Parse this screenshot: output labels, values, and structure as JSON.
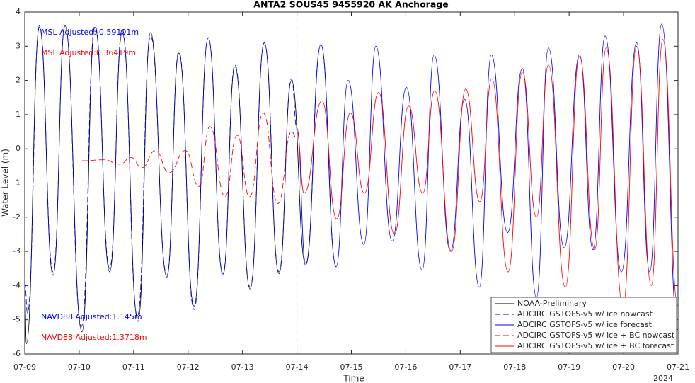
{
  "chart_data": {
    "type": "line",
    "title": "ANTA2 SOUS45 9455920 AK Anchorage",
    "x_label": "Time",
    "y_label": "Water Level (m)",
    "year_label": "2024",
    "xlim": [
      0,
      12
    ],
    "xticks": [
      {
        "value": 0,
        "label": "07-09"
      },
      {
        "value": 1,
        "label": "07-10"
      },
      {
        "value": 2,
        "label": "07-11"
      },
      {
        "value": 3,
        "label": "07-12"
      },
      {
        "value": 4,
        "label": "07-13"
      },
      {
        "value": 5,
        "label": "07-14"
      },
      {
        "value": 6,
        "label": "07-15"
      },
      {
        "value": 7,
        "label": "07-16"
      },
      {
        "value": 8,
        "label": "07-17"
      },
      {
        "value": 9,
        "label": "07-18"
      },
      {
        "value": 10,
        "label": "07-19"
      },
      {
        "value": 11,
        "label": "07-20"
      },
      {
        "value": 12,
        "label": "07-21"
      }
    ],
    "ylim": [
      -6,
      4
    ],
    "yticks": [
      -6,
      -5,
      -4,
      -3,
      -2,
      -1,
      0,
      1,
      2,
      3,
      4
    ],
    "grid": false,
    "vline_x": 5,
    "legend_position": "lower right",
    "annotations": [
      {
        "text": "MSL Adjusted:-0.59101m",
        "color": "#0000ff"
      },
      {
        "text": "MSL Adjusted:0.36419m",
        "color": "#ff0000"
      },
      {
        "text": "NAVD88 Adjusted:1.145m",
        "color": "#0000ff"
      },
      {
        "text": "NAVD88 Adjusted:1.3718m",
        "color": "#ff0000"
      }
    ],
    "series": [
      {
        "name": "NOAA-Preliminary",
        "color": "#000000",
        "dash": false,
        "x": [
          0,
          0.03,
          0.27,
          0.52,
          0.74,
          1.05,
          1.29,
          1.56,
          1.79,
          2.08,
          2.31,
          2.61,
          2.83,
          3.11,
          3.37,
          3.64,
          3.86,
          4.14,
          4.4,
          4.67,
          4.9,
          5.16,
          5.44,
          5.72
        ],
        "values": [
          -4.3,
          -5.7,
          3.55,
          -3.7,
          3.6,
          -5.35,
          3.55,
          -3.6,
          3.4,
          -5.05,
          3.4,
          -3.75,
          2.8,
          -4.6,
          3.25,
          -3.7,
          2.4,
          -4.1,
          3.1,
          -3.65,
          2.0,
          -3.4,
          3.05,
          -3.45
        ]
      },
      {
        "name": "ADCIRC GSTOFS-v5 w/ ice nowcast",
        "color": "#0000ff",
        "dash": true,
        "x": [
          0,
          0.05,
          0.27,
          0.52,
          0.74,
          1.04,
          1.29,
          1.56,
          1.79,
          2.07,
          2.31,
          2.61,
          2.83,
          3.11,
          3.37,
          3.64,
          3.86,
          4.14,
          4.4,
          4.67,
          4.9,
          5.0
        ],
        "values": [
          -3.9,
          -4.8,
          3.6,
          -3.6,
          3.6,
          -5.2,
          3.6,
          -3.5,
          3.5,
          -4.9,
          3.3,
          -3.7,
          2.85,
          -4.7,
          3.25,
          -3.65,
          2.45,
          -4.05,
          3.1,
          -3.6,
          2.05,
          0.6
        ]
      },
      {
        "name": "ADCIRC GSTOFS-v5 w/ ice forecast",
        "color": "#0000ff",
        "dash": false,
        "x": [
          5.0,
          5.16,
          5.44,
          5.72,
          5.94,
          6.23,
          6.45,
          6.75,
          7.01,
          7.3,
          7.52,
          7.82,
          8.08,
          8.35,
          8.57,
          8.87,
          9.14,
          9.4,
          9.62,
          9.91,
          10.19,
          10.44,
          10.66,
          10.96,
          11.24,
          11.48,
          11.7,
          12.0
        ],
        "values": [
          0.6,
          -3.35,
          3.05,
          -3.45,
          2.0,
          -2.8,
          3.0,
          -2.7,
          1.8,
          -3.55,
          2.75,
          -3.0,
          1.45,
          -4.05,
          2.75,
          -2.45,
          2.35,
          -4.35,
          2.95,
          -2.9,
          2.75,
          -2.95,
          3.3,
          -3.6,
          3.1,
          -3.6,
          3.65,
          -5.3
        ]
      },
      {
        "name": "ADCIRC GSTOFS-v5 w/ ice + BC nowcast",
        "color": "#ff0000",
        "dash": true,
        "x": [
          1.05,
          1.45,
          1.75,
          1.95,
          2.15,
          2.4,
          2.65,
          2.95,
          3.2,
          3.4,
          3.68,
          3.9,
          4.13,
          4.38,
          4.65,
          4.9,
          5.0
        ],
        "values": [
          -0.35,
          -0.32,
          -0.45,
          -0.25,
          -0.55,
          -0.05,
          -0.7,
          -0.05,
          -1.1,
          0.65,
          -1.4,
          0.4,
          -1.4,
          1.05,
          -1.6,
          0.5,
          0.3
        ]
      },
      {
        "name": "ADCIRC GSTOFS-v5 w/ ice + BC forecast",
        "color": "#ff0000",
        "dash": false,
        "x": [
          5.0,
          5.13,
          5.46,
          5.73,
          5.98,
          6.24,
          6.5,
          6.79,
          7.05,
          7.31,
          7.53,
          7.84,
          8.1,
          8.36,
          8.58,
          8.88,
          9.14,
          9.4,
          9.62,
          9.93,
          10.19,
          10.47,
          10.68,
          10.99,
          11.24,
          11.51,
          11.72,
          12.0
        ],
        "values": [
          0.5,
          -1.3,
          1.4,
          -2.05,
          1.05,
          -1.3,
          1.65,
          -2.5,
          1.25,
          -1.3,
          1.7,
          -3.0,
          1.75,
          -1.55,
          2.05,
          -3.6,
          2.25,
          -2.0,
          2.45,
          -4.05,
          2.7,
          -2.95,
          2.95,
          -4.6,
          3.0,
          -4.0,
          3.2,
          -4.6
        ]
      }
    ]
  }
}
